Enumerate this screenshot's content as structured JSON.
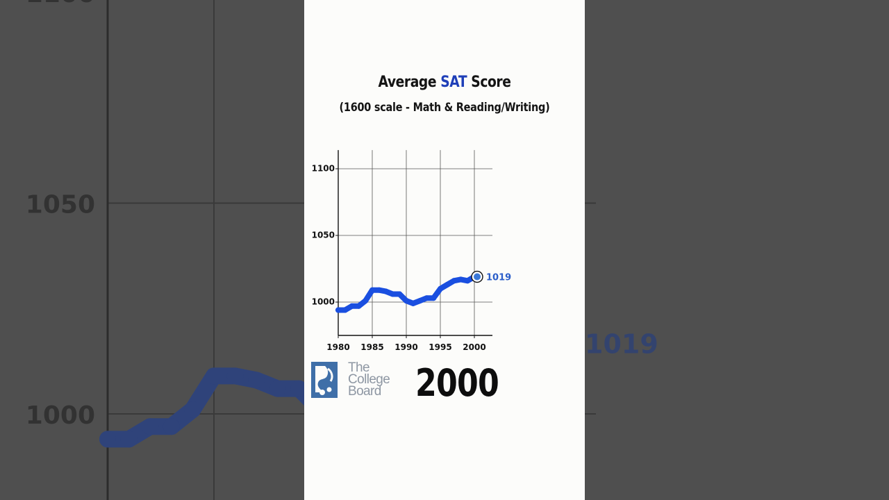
{
  "header": {
    "title_before": "Average ",
    "title_accent": "SAT",
    "title_after": " Score",
    "subtitle": "(1600 scale - Math & Reading/Writing)"
  },
  "logo": {
    "line1": "The",
    "line2": "College",
    "line3": "Board"
  },
  "current_year": "2000",
  "chart_data": {
    "type": "line",
    "title": "Average SAT Score",
    "subtitle": "(1600 scale - Math & Reading/Writing)",
    "xlabel": "",
    "ylabel": "",
    "xlim": [
      1980,
      2005
    ],
    "ylim": [
      975,
      1114
    ],
    "x_ticks": [
      1980,
      1985,
      1990,
      1995,
      2000
    ],
    "y_ticks": [
      1000,
      1050,
      1100
    ],
    "grid": true,
    "series": [
      {
        "color": "#1a4fe0",
        "x": [
          1980,
          1981,
          1982,
          1983,
          1984,
          1985,
          1986,
          1987,
          1988,
          1989,
          1990,
          1991,
          1992,
          1993,
          1994,
          1995,
          1996,
          1997,
          1998,
          1999,
          2000
        ],
        "values": [
          994,
          994,
          997,
          997,
          1001,
          1009,
          1009,
          1008,
          1006,
          1006,
          1001,
          999,
          1001,
          1003,
          1003,
          1010,
          1013,
          1016,
          1017,
          1016,
          1019
        ]
      }
    ],
    "end_label": "1019"
  }
}
